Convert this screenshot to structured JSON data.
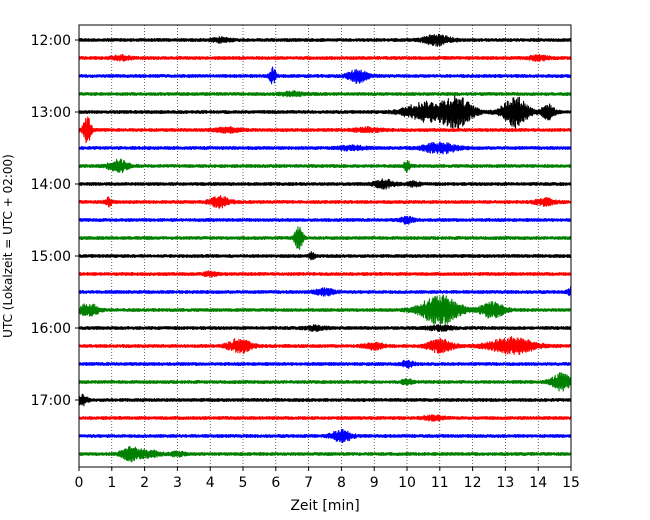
{
  "chart_data": {
    "type": "line",
    "title": "",
    "xlabel": "Zeit  [min]",
    "ylabel": "UTC (Lokalzeit = UTC + 02:00)",
    "xlim": [
      0,
      15
    ],
    "x_ticks": [
      "0",
      "1",
      "2",
      "3",
      "4",
      "5",
      "6",
      "7",
      "8",
      "9",
      "10",
      "11",
      "12",
      "13",
      "14",
      "15"
    ],
    "y_tick_labels": [
      "12:00",
      "13:00",
      "14:00",
      "15:00",
      "16:00",
      "17:00"
    ],
    "grid": "vertical-dotted",
    "legend": "none",
    "colors": [
      "#000000",
      "#ff0000",
      "#0000ff",
      "#008000"
    ],
    "rows_per_hour": 4,
    "start_time": "12:00",
    "traces": [
      {
        "time": "12:00",
        "color": "#000000",
        "events": [
          {
            "t": 10.9,
            "amp": 5,
            "w": 0.4
          },
          {
            "t": 4.3,
            "amp": 2,
            "w": 0.3
          }
        ]
      },
      {
        "time": "12:15",
        "color": "#ff0000",
        "events": [
          {
            "t": 1.3,
            "amp": 2,
            "w": 0.3
          },
          {
            "t": 14.0,
            "amp": 2,
            "w": 0.3
          }
        ]
      },
      {
        "time": "12:30",
        "color": "#0000ff",
        "events": [
          {
            "t": 5.9,
            "amp": 8,
            "w": 0.1
          },
          {
            "t": 8.5,
            "amp": 6,
            "w": 0.3
          }
        ]
      },
      {
        "time": "12:45",
        "color": "#008000",
        "events": [
          {
            "t": 6.5,
            "amp": 2,
            "w": 0.3
          }
        ]
      },
      {
        "time": "13:00",
        "color": "#000000",
        "events": [
          {
            "t": 10.5,
            "amp": 9,
            "w": 0.6
          },
          {
            "t": 11.5,
            "amp": 15,
            "w": 0.5
          },
          {
            "t": 13.3,
            "amp": 15,
            "w": 0.4
          },
          {
            "t": 14.3,
            "amp": 7,
            "w": 0.2
          }
        ]
      },
      {
        "time": "13:15",
        "color": "#ff0000",
        "events": [
          {
            "t": 0.25,
            "amp": 14,
            "w": 0.12
          },
          {
            "t": 4.5,
            "amp": 2,
            "w": 0.4
          },
          {
            "t": 8.8,
            "amp": 2,
            "w": 0.4
          }
        ]
      },
      {
        "time": "13:30",
        "color": "#0000ff",
        "events": [
          {
            "t": 11.0,
            "amp": 5,
            "w": 0.5
          },
          {
            "t": 8.3,
            "amp": 2,
            "w": 0.4
          }
        ]
      },
      {
        "time": "13:45",
        "color": "#008000",
        "events": [
          {
            "t": 1.2,
            "amp": 6,
            "w": 0.3
          },
          {
            "t": 10.0,
            "amp": 5,
            "w": 0.1
          }
        ]
      },
      {
        "time": "14:00",
        "color": "#000000",
        "events": [
          {
            "t": 9.3,
            "amp": 4,
            "w": 0.3
          },
          {
            "t": 10.2,
            "amp": 2,
            "w": 0.2
          }
        ]
      },
      {
        "time": "14:15",
        "color": "#ff0000",
        "events": [
          {
            "t": 0.9,
            "amp": 4,
            "w": 0.1
          },
          {
            "t": 4.3,
            "amp": 5,
            "w": 0.3
          },
          {
            "t": 14.2,
            "amp": 3,
            "w": 0.3
          }
        ]
      },
      {
        "time": "14:30",
        "color": "#0000ff",
        "events": [
          {
            "t": 10.0,
            "amp": 3,
            "w": 0.2
          }
        ]
      },
      {
        "time": "14:45",
        "color": "#008000",
        "events": [
          {
            "t": 6.7,
            "amp": 12,
            "w": 0.12
          }
        ]
      },
      {
        "time": "15:00",
        "color": "#000000",
        "events": [
          {
            "t": 7.1,
            "amp": 3,
            "w": 0.1
          }
        ]
      },
      {
        "time": "15:15",
        "color": "#ff0000",
        "events": [
          {
            "t": 4.0,
            "amp": 2,
            "w": 0.2
          }
        ]
      },
      {
        "time": "15:30",
        "color": "#0000ff",
        "events": [
          {
            "t": 7.5,
            "amp": 3,
            "w": 0.3
          },
          {
            "t": 15.0,
            "amp": 4,
            "w": 0.1
          }
        ]
      },
      {
        "time": "15:45",
        "color": "#008000",
        "events": [
          {
            "t": 0.3,
            "amp": 6,
            "w": 0.3
          },
          {
            "t": 11.0,
            "amp": 14,
            "w": 0.6
          },
          {
            "t": 12.6,
            "amp": 8,
            "w": 0.35
          }
        ]
      },
      {
        "time": "16:00",
        "color": "#000000",
        "events": [
          {
            "t": 7.2,
            "amp": 2,
            "w": 0.3
          },
          {
            "t": 11.0,
            "amp": 2,
            "w": 0.4
          }
        ]
      },
      {
        "time": "16:15",
        "color": "#ff0000",
        "events": [
          {
            "t": 4.9,
            "amp": 7,
            "w": 0.35
          },
          {
            "t": 11.0,
            "amp": 6,
            "w": 0.4
          },
          {
            "t": 13.2,
            "amp": 8,
            "w": 0.7
          },
          {
            "t": 9.0,
            "amp": 3,
            "w": 0.3
          }
        ]
      },
      {
        "time": "16:30",
        "color": "#0000ff",
        "events": [
          {
            "t": 10.0,
            "amp": 3,
            "w": 0.2
          }
        ]
      },
      {
        "time": "16:45",
        "color": "#008000",
        "events": [
          {
            "t": 14.7,
            "amp": 8,
            "w": 0.3
          },
          {
            "t": 10.0,
            "amp": 3,
            "w": 0.15
          }
        ]
      },
      {
        "time": "17:00",
        "color": "#000000",
        "events": [
          {
            "t": 0.1,
            "amp": 5,
            "w": 0.15
          }
        ]
      },
      {
        "time": "17:15",
        "color": "#ff0000",
        "events": [
          {
            "t": 10.8,
            "amp": 2,
            "w": 0.3
          }
        ]
      },
      {
        "time": "17:30",
        "color": "#0000ff",
        "events": [
          {
            "t": 8.0,
            "amp": 6,
            "w": 0.3
          }
        ]
      },
      {
        "time": "17:45",
        "color": "#008000",
        "events": [
          {
            "t": 1.6,
            "amp": 7,
            "w": 0.3
          },
          {
            "t": 2.2,
            "amp": 3,
            "w": 0.3
          },
          {
            "t": 3.0,
            "amp": 2,
            "w": 0.2
          }
        ]
      }
    ]
  }
}
